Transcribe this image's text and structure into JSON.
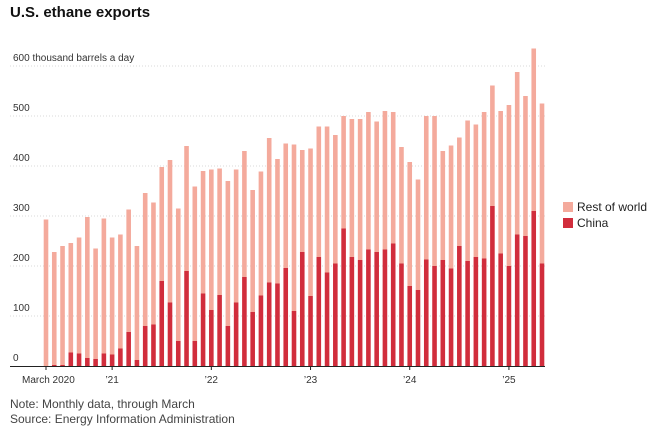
{
  "chart_data": {
    "type": "bar",
    "stacked": true,
    "title": "U.S. ethane exports",
    "ylabel": "600 thousand barrels a day",
    "ylim": [
      0,
      640
    ],
    "y_ticks": [
      0,
      100,
      200,
      300,
      400,
      500
    ],
    "top_tick_label": "600 thousand barrels a day",
    "x_tick_labels": [
      {
        "label": "March 2020",
        "index": 0
      },
      {
        "label": "’21",
        "index": 8
      },
      {
        "label": "’22",
        "index": 20
      },
      {
        "label": "’23",
        "index": 32
      },
      {
        "label": "’24",
        "index": 44
      },
      {
        "label": "’25",
        "index": 56
      }
    ],
    "categories": [
      "2020-03",
      "2020-04",
      "2020-05",
      "2020-06",
      "2020-07",
      "2020-08",
      "2020-09",
      "2020-10",
      "2020-11",
      "2020-12",
      "2021-01",
      "2021-02",
      "2021-03",
      "2021-04",
      "2021-05",
      "2021-06",
      "2021-07",
      "2021-08",
      "2021-09",
      "2021-10",
      "2021-11",
      "2021-12",
      "2022-01",
      "2022-02",
      "2022-03",
      "2022-04",
      "2022-05",
      "2022-06",
      "2022-07",
      "2022-08",
      "2022-09",
      "2022-10",
      "2022-11",
      "2022-12",
      "2023-01",
      "2023-02",
      "2023-03",
      "2023-04",
      "2023-05",
      "2023-06",
      "2023-07",
      "2023-08",
      "2023-09",
      "2023-10",
      "2023-11",
      "2023-12",
      "2024-01",
      "2024-02",
      "2024-03",
      "2024-04",
      "2024-05",
      "2024-06",
      "2024-07",
      "2024-08",
      "2024-09",
      "2024-10",
      "2024-11",
      "2024-12",
      "2025-01",
      "2025-02",
      "2025-03"
    ],
    "series": [
      {
        "name": "China",
        "color": "#d12d3c",
        "values": [
          0,
          2,
          2,
          27,
          25,
          16,
          14,
          25,
          23,
          35,
          68,
          12,
          80,
          83,
          170,
          127,
          50,
          190,
          50,
          145,
          112,
          142,
          80,
          127,
          178,
          108,
          141,
          167,
          165,
          196,
          110,
          228,
          140,
          218,
          187,
          205,
          275,
          218,
          212,
          233,
          228,
          233,
          245,
          205,
          160,
          152,
          213,
          200,
          212,
          195,
          240,
          210,
          218,
          215,
          320,
          225,
          200,
          263,
          260,
          310,
          205
        ]
      },
      {
        "name": "Rest of world",
        "color": "#f4aa9c",
        "values": [
          293,
          226,
          238,
          219,
          232,
          282,
          221,
          270,
          234,
          228,
          245,
          228,
          266,
          244,
          228,
          285,
          265,
          250,
          309,
          245,
          281,
          253,
          290,
          266,
          252,
          244,
          248,
          289,
          249,
          249,
          333,
          204,
          295,
          261,
          292,
          257,
          225,
          276,
          282,
          275,
          261,
          277,
          263,
          233,
          248,
          221,
          287,
          300,
          218,
          246,
          217,
          281,
          265,
          293,
          241,
          285,
          322,
          325,
          280,
          325,
          320
        ]
      }
    ],
    "legend": {
      "placement": "right",
      "entries": [
        "Rest of world",
        "China"
      ]
    }
  },
  "footer": {
    "note": "Note: Monthly data, through March",
    "source": "Source: Energy Information Administration"
  }
}
